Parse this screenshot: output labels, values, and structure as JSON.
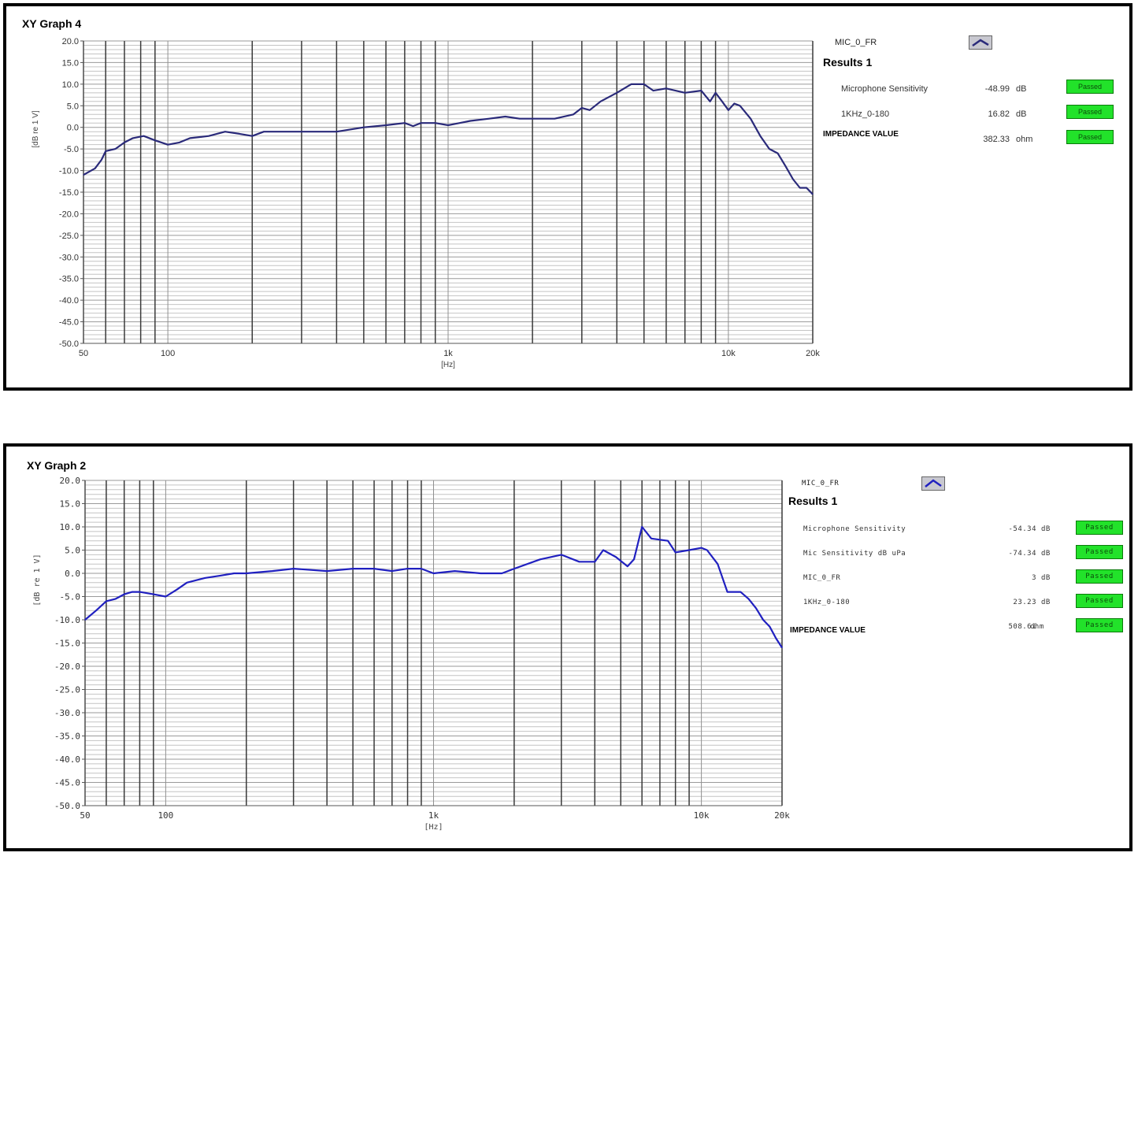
{
  "charts": [
    {
      "panel_title": "XY Graph 4",
      "legend_label": "MIC_0_FR",
      "results_title": "Results 1",
      "results": [
        {
          "name": "Microphone Sensitivity",
          "value": "-48.99",
          "unit": "dB",
          "status": "Passed"
        },
        {
          "name": "1KHz_0-180",
          "value": "16.82",
          "unit": "dB",
          "status": "Passed"
        },
        {
          "name": "IMPEDANCE VALUE",
          "value": "382.33",
          "unit": "ohm",
          "status": "Passed"
        }
      ]
    },
    {
      "panel_title": "XY Graph 2",
      "legend_label": "MIC_0_FR",
      "results_title": "Results 1",
      "results": [
        {
          "name": "Microphone Sensitivity",
          "value": "-54.34",
          "unit": "dB",
          "status": "Passed"
        },
        {
          "name": "Mic Sensitivity dB uPa",
          "value": "-74.34",
          "unit": "dB",
          "status": "Passed"
        },
        {
          "name": "MIC_0_FR",
          "value": "3",
          "unit": "dB",
          "status": "Passed"
        },
        {
          "name": "1KHz_0-180",
          "value": "23.23",
          "unit": "dB",
          "status": "Passed"
        },
        {
          "name": "IMPEDANCE VALUE",
          "value": "508.61",
          "unit": "ohm",
          "status": "Passed"
        }
      ]
    }
  ],
  "chart_data": [
    {
      "type": "line",
      "title": "XY Graph 4",
      "xlabel": "[Hz]",
      "ylabel": "[dB re 1 V]",
      "x_scale": "log",
      "xlim": [
        50,
        20000
      ],
      "ylim": [
        -50,
        20
      ],
      "xticks": [
        "50",
        "100",
        "1k",
        "10k",
        "20k"
      ],
      "xtick_values": [
        50,
        100,
        1000,
        10000,
        20000
      ],
      "yticks": [
        "20.0",
        "15.0",
        "10.0",
        "5.0",
        "0.0",
        "-5.0",
        "-10.0",
        "-15.0",
        "-20.0",
        "-25.0",
        "-30.0",
        "-35.0",
        "-40.0",
        "-45.0",
        "-50.0"
      ],
      "ytick_values": [
        20,
        15,
        10,
        5,
        0,
        -5,
        -10,
        -15,
        -20,
        -25,
        -30,
        -35,
        -40,
        -45,
        -50
      ],
      "grid": true,
      "line_color": "#2a2a7a",
      "series": [
        {
          "name": "MIC_0_FR",
          "x": [
            50,
            55,
            58,
            60,
            65,
            70,
            75,
            82,
            90,
            100,
            110,
            120,
            140,
            160,
            180,
            200,
            220,
            250,
            300,
            400,
            500,
            600,
            700,
            750,
            800,
            900,
            1000,
            1100,
            1200,
            1400,
            1600,
            1800,
            2000,
            2400,
            2800,
            3000,
            3200,
            3500,
            4000,
            4500,
            5000,
            5400,
            6000,
            7000,
            8000,
            8600,
            9000,
            9500,
            10000,
            10500,
            11000,
            12000,
            13000,
            14000,
            15000,
            16000,
            17000,
            18000,
            19000,
            20000
          ],
          "y": [
            -11,
            -9.5,
            -7.5,
            -5.5,
            -5,
            -3.5,
            -2.5,
            -2,
            -3,
            -4,
            -3.5,
            -2.5,
            -2,
            -1,
            -1.5,
            -2,
            -1,
            -1,
            -1,
            -1,
            0,
            0.5,
            1,
            0.3,
            1,
            1,
            0.5,
            1,
            1.5,
            2,
            2.5,
            2,
            2,
            2,
            3,
            4.5,
            4,
            6,
            8,
            10,
            10,
            8.5,
            9,
            8,
            8.5,
            6,
            8,
            6,
            4,
            5.5,
            5,
            2,
            -2,
            -5,
            -6,
            -9,
            -12,
            -14,
            -14,
            -15.5
          ]
        }
      ]
    },
    {
      "type": "line",
      "title": "XY Graph 2",
      "xlabel": "[Hz]",
      "ylabel": "[dB re 1 V]",
      "x_scale": "log",
      "xlim": [
        50,
        20000
      ],
      "ylim": [
        -50,
        20
      ],
      "xticks": [
        "50",
        "100",
        "1k",
        "10k",
        "20k"
      ],
      "xtick_values": [
        50,
        100,
        1000,
        10000,
        20000
      ],
      "yticks": [
        "20.0",
        "15.0",
        "10.0",
        "5.0",
        "0.0",
        "-5.0",
        "-10.0",
        "-15.0",
        "-20.0",
        "-25.0",
        "-30.0",
        "-35.0",
        "-40.0",
        "-45.0",
        "-50.0"
      ],
      "ytick_values": [
        20,
        15,
        10,
        5,
        0,
        -5,
        -10,
        -15,
        -20,
        -25,
        -30,
        -35,
        -40,
        -45,
        -50
      ],
      "grid": true,
      "line_color": "#2020c0",
      "series": [
        {
          "name": "MIC_0_FR",
          "x": [
            50,
            55,
            60,
            65,
            70,
            75,
            80,
            90,
            100,
            110,
            120,
            140,
            160,
            180,
            200,
            250,
            300,
            400,
            500,
            600,
            700,
            800,
            900,
            1000,
            1200,
            1500,
            1800,
            2000,
            2500,
            3000,
            3500,
            4000,
            4300,
            4800,
            5300,
            5600,
            6000,
            6500,
            7500,
            8000,
            9000,
            10000,
            10500,
            11500,
            12500,
            14000,
            15000,
            16000,
            17000,
            18000,
            19000,
            20000
          ],
          "y": [
            -10,
            -8,
            -6,
            -5.5,
            -4.5,
            -4,
            -4,
            -4.5,
            -5,
            -3.5,
            -2,
            -1,
            -0.5,
            0,
            0,
            0.5,
            1,
            0.5,
            1,
            1,
            0.5,
            1,
            1,
            0,
            0.5,
            0,
            0,
            1,
            3,
            4,
            2.5,
            2.5,
            5,
            3.5,
            1.5,
            3,
            10,
            7.5,
            7,
            4.5,
            5,
            5.5,
            5,
            2,
            -4,
            -4,
            -5.5,
            -7.5,
            -10,
            -11.5,
            -14,
            -16
          ]
        }
      ]
    }
  ]
}
